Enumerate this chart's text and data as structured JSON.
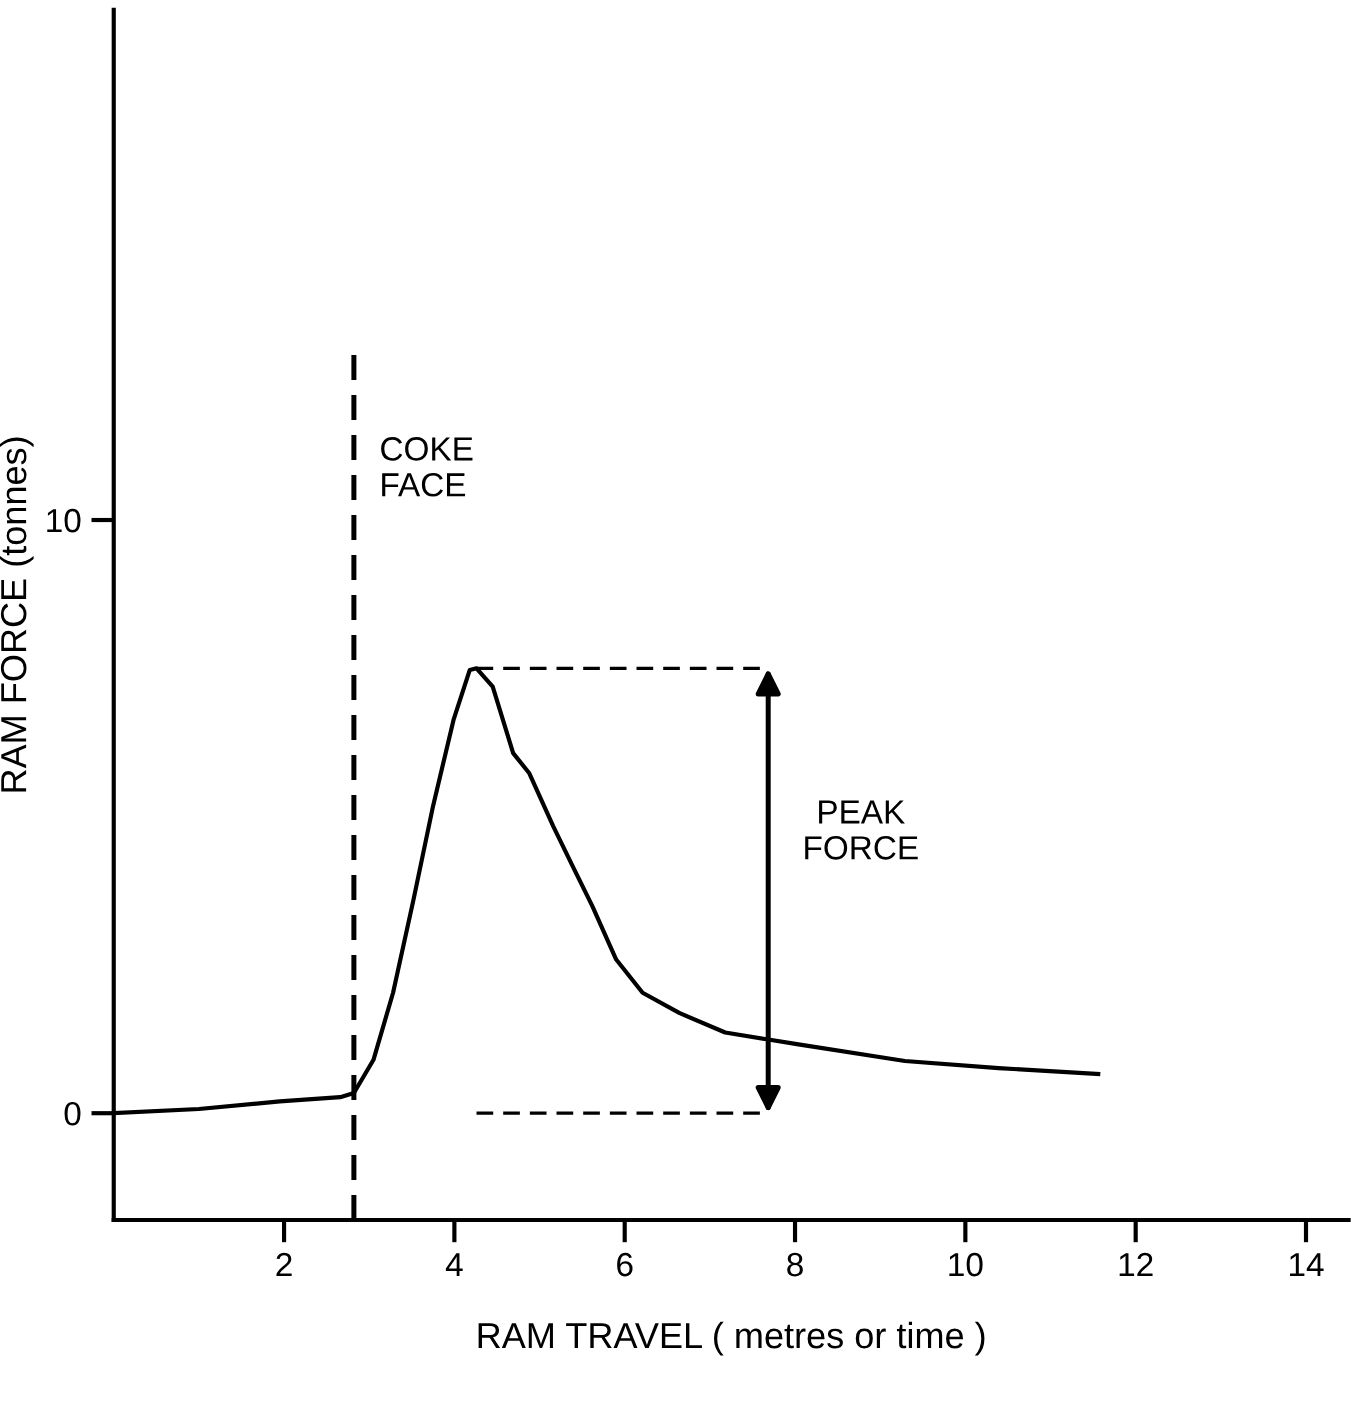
{
  "chart_data": {
    "type": "line",
    "xlabel": "RAM TRAVEL ( metres or time )",
    "ylabel": "RAM FORCE (tonnes)",
    "xlim": [
      0,
      14.5
    ],
    "ylim": [
      -1.8,
      18.6
    ],
    "xticks": [
      2,
      4,
      6,
      8,
      10,
      12,
      14
    ],
    "yticks": [
      0,
      10
    ],
    "grid": false,
    "legend": false,
    "marker": "none",
    "line_style": "solid",
    "series": [
      {
        "color": "#000000",
        "x": [
          0,
          1.0,
          1.95,
          2.66,
          2.82,
          3.05,
          3.28,
          3.52,
          3.75,
          3.99,
          4.18,
          4.26,
          4.45,
          4.69,
          4.88,
          5.16,
          5.39,
          5.62,
          5.9,
          6.21,
          6.64,
          7.18,
          7.65,
          8.04,
          9.29,
          10.39,
          11.56
        ],
        "values": [
          0,
          0.07,
          0.2,
          0.27,
          0.34,
          0.9,
          2.03,
          3.6,
          5.18,
          6.63,
          7.47,
          7.5,
          7.19,
          6.07,
          5.73,
          4.84,
          4.16,
          3.49,
          2.59,
          2.03,
          1.69,
          1.36,
          1.25,
          1.16,
          0.88,
          0.76,
          0.66
        ]
      }
    ],
    "ref_lines": [
      {
        "axis": "x",
        "value": 2.82,
        "label": "COKE\nFACE",
        "line_style": "dashed",
        "color": "#000000"
      },
      {
        "axis": "y",
        "value": 7.5,
        "line_style": "dashed",
        "color": "#000000"
      },
      {
        "axis": "y",
        "value": 0,
        "line_style": "dashed",
        "color": "#000000"
      }
    ],
    "annotations": [
      "PEAK\nFORCE"
    ]
  }
}
